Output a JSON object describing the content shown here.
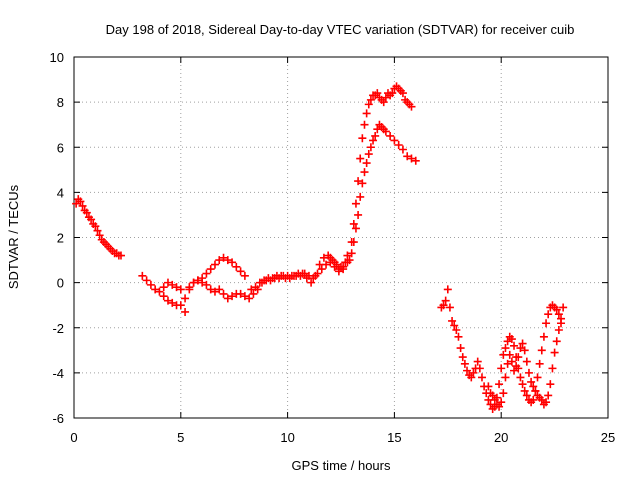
{
  "chart_data": {
    "type": "scatter",
    "title": "Day 198 of 2018, Sidereal Day-to-day VTEC variation (SDTVAR) for receiver cuib",
    "xlabel": "GPS time / hours",
    "ylabel": "SDTVAR / TECUs",
    "xlim": [
      0,
      25
    ],
    "ylim": [
      -6,
      10
    ],
    "xticks": [
      0,
      5,
      10,
      15,
      20,
      25
    ],
    "yticks": [
      -6,
      -4,
      -2,
      0,
      2,
      4,
      6,
      8,
      10
    ],
    "grid": true,
    "marker": "+",
    "color": "#ff0000",
    "series": [
      {
        "name": "segment-1",
        "x": [
          0.1,
          0.2,
          0.3,
          0.4,
          0.5,
          0.6,
          0.7,
          0.8,
          0.9,
          1.0,
          1.1,
          1.2,
          1.3,
          1.4,
          1.5,
          1.6,
          1.7,
          1.8,
          1.9,
          2.0,
          2.1,
          2.2
        ],
        "y": [
          3.5,
          3.7,
          3.6,
          3.4,
          3.2,
          3.1,
          2.9,
          2.8,
          2.6,
          2.5,
          2.3,
          2.1,
          1.9,
          1.8,
          1.7,
          1.6,
          1.5,
          1.4,
          1.3,
          1.3,
          1.2,
          1.2
        ]
      },
      {
        "name": "segment-2a",
        "x": [
          3.2,
          3.4,
          3.6,
          3.8,
          4.0,
          4.2,
          4.4,
          4.6,
          4.8,
          5.0,
          5.2,
          5.4,
          5.6,
          5.8,
          6.0,
          6.2,
          6.4,
          6.6,
          6.8,
          7.0,
          7.2,
          7.4,
          7.6,
          7.8,
          8.0
        ],
        "y": [
          0.3,
          0.1,
          -0.1,
          -0.3,
          -0.4,
          -0.6,
          -0.8,
          -0.9,
          -1.0,
          -1.0,
          -0.7,
          -0.3,
          0.0,
          0.1,
          0.2,
          0.4,
          0.6,
          0.8,
          1.0,
          1.1,
          1.0,
          0.9,
          0.7,
          0.5,
          0.3
        ]
      },
      {
        "name": "segment-2b",
        "x": [
          4.2,
          4.4,
          4.6,
          4.8,
          5.0,
          5.2,
          5.4,
          5.6,
          5.8,
          6.0,
          6.2,
          6.4,
          6.6,
          6.8,
          7.0,
          7.2,
          7.4,
          7.6,
          7.8,
          8.0,
          8.2,
          8.4,
          8.6,
          8.8,
          9.0,
          9.2,
          9.4,
          9.6,
          9.8,
          10.0,
          10.2,
          10.4,
          10.6,
          10.8,
          11.0
        ],
        "y": [
          -0.2,
          0.0,
          -0.1,
          -0.2,
          -0.3,
          -1.3,
          -0.2,
          0.0,
          0.1,
          0.0,
          -0.1,
          -0.3,
          -0.4,
          -0.3,
          -0.5,
          -0.7,
          -0.6,
          -0.5,
          -0.5,
          -0.6,
          -0.7,
          -0.5,
          -0.3,
          0.0,
          0.1,
          0.1,
          0.2,
          0.2,
          0.3,
          0.3,
          0.3,
          0.3,
          0.3,
          0.4,
          0.3
        ]
      },
      {
        "name": "segment-2c",
        "x": [
          8.3,
          8.5,
          8.7,
          8.9,
          9.1,
          9.3,
          9.5,
          9.7,
          9.9,
          10.1,
          10.3,
          10.5,
          10.7,
          10.9,
          11.1,
          11.3,
          11.5,
          11.7,
          11.9,
          12.1,
          12.3,
          12.5,
          12.7,
          12.9
        ],
        "y": [
          -0.3,
          -0.2,
          0.0,
          0.1,
          0.2,
          0.2,
          0.3,
          0.3,
          0.2,
          0.2,
          0.3,
          0.4,
          0.4,
          0.2,
          0.0,
          0.3,
          0.8,
          1.1,
          1.2,
          1.0,
          0.8,
          0.7,
          0.9,
          1.0
        ]
      },
      {
        "name": "segment-3a",
        "x": [
          11.2,
          11.4,
          11.6,
          11.8,
          12.0,
          12.2,
          12.4,
          12.6,
          12.8,
          13.0,
          13.1,
          13.2,
          13.3,
          13.4,
          13.5,
          13.6,
          13.7,
          13.8,
          13.9,
          14.0,
          14.1,
          14.2,
          14.3,
          14.4,
          14.5,
          14.6,
          14.7,
          14.8,
          14.9,
          15.0,
          15.1,
          15.2,
          15.3,
          15.4,
          15.5,
          15.6,
          15.7,
          15.8
        ],
        "y": [
          0.2,
          0.4,
          0.6,
          0.8,
          1.1,
          0.9,
          0.6,
          0.7,
          1.2,
          1.8,
          2.6,
          3.5,
          4.5,
          5.5,
          6.4,
          7.0,
          7.5,
          7.9,
          8.1,
          8.3,
          8.3,
          8.4,
          8.2,
          8.1,
          8.0,
          8.2,
          8.4,
          8.3,
          8.4,
          8.6,
          8.7,
          8.6,
          8.5,
          8.4,
          8.1,
          8.0,
          7.9,
          7.8
        ]
      },
      {
        "name": "segment-3b",
        "x": [
          12.0,
          12.2,
          12.4,
          12.6,
          12.8,
          13.0,
          13.1,
          13.2,
          13.3,
          13.4,
          13.5,
          13.6,
          13.7,
          13.8,
          13.9,
          14.0,
          14.1,
          14.2,
          14.3,
          14.4,
          14.5,
          14.6,
          14.8,
          15.0,
          15.2,
          15.4,
          15.6,
          15.8,
          16.0
        ],
        "y": [
          0.9,
          0.7,
          0.5,
          0.6,
          0.9,
          1.3,
          1.8,
          2.4,
          3.0,
          3.8,
          4.4,
          4.9,
          5.3,
          5.7,
          6.0,
          6.3,
          6.5,
          6.8,
          7.0,
          6.9,
          6.8,
          6.7,
          6.5,
          6.3,
          6.1,
          5.9,
          5.6,
          5.5,
          5.4
        ]
      },
      {
        "name": "segment-4a",
        "x": [
          17.2,
          17.3,
          17.4,
          17.5,
          17.6,
          17.7,
          17.8,
          17.9,
          18.0,
          18.1,
          18.2,
          18.3,
          18.4,
          18.5,
          18.6,
          18.7,
          18.8,
          18.9,
          19.0,
          19.1,
          19.2,
          19.3,
          19.4,
          19.5,
          19.6,
          19.7,
          19.8,
          19.9,
          20.0,
          20.1,
          20.2,
          20.3,
          20.4,
          20.5,
          20.6,
          20.7,
          20.8,
          20.9,
          21.0,
          21.1,
          21.2,
          21.3,
          21.4,
          21.5,
          21.6,
          21.7,
          21.8,
          21.9,
          22.0,
          22.1,
          22.2,
          22.3,
          22.4,
          22.5,
          22.6,
          22.7,
          22.8,
          22.9
        ],
        "y": [
          -1.1,
          -1.0,
          -0.8,
          -0.3,
          -1.1,
          -1.7,
          -1.9,
          -2.1,
          -2.4,
          -2.9,
          -3.3,
          -3.6,
          -3.9,
          -4.1,
          -4.2,
          -4.0,
          -3.8,
          -3.5,
          -3.8,
          -4.2,
          -4.6,
          -4.9,
          -5.2,
          -5.4,
          -5.6,
          -5.5,
          -5.1,
          -4.5,
          -3.8,
          -3.2,
          -2.9,
          -2.6,
          -2.4,
          -2.5,
          -2.8,
          -3.3,
          -3.8,
          -4.2,
          -4.5,
          -4.8,
          -5.0,
          -5.2,
          -5.3,
          -5.2,
          -4.8,
          -4.2,
          -3.6,
          -3.0,
          -2.4,
          -1.8,
          -1.4,
          -1.1,
          -1.0,
          -1.1,
          -1.2,
          -1.4,
          -1.6,
          -1.1
        ]
      },
      {
        "name": "segment-4b",
        "x": [
          19.4,
          19.5,
          19.6,
          19.7,
          19.8,
          19.9,
          20.0,
          20.1,
          20.2,
          20.3,
          20.4,
          20.5,
          20.6,
          20.7,
          20.8,
          20.9,
          21.0,
          21.1,
          21.2,
          21.3,
          21.4,
          21.5,
          21.6,
          21.7,
          21.8,
          21.9,
          22.0,
          22.1,
          22.2,
          22.3,
          22.4,
          22.5,
          22.6,
          22.7,
          22.8
        ],
        "y": [
          -4.6,
          -4.9,
          -5.0,
          -5.2,
          -5.4,
          -5.5,
          -5.3,
          -4.9,
          -4.2,
          -3.6,
          -3.2,
          -3.5,
          -3.9,
          -3.7,
          -3.3,
          -2.9,
          -2.7,
          -3.0,
          -3.5,
          -4.0,
          -4.4,
          -4.6,
          -4.8,
          -5.0,
          -5.1,
          -5.2,
          -5.4,
          -5.3,
          -5.0,
          -4.5,
          -3.8,
          -3.1,
          -2.6,
          -2.1,
          -1.8
        ]
      }
    ]
  }
}
